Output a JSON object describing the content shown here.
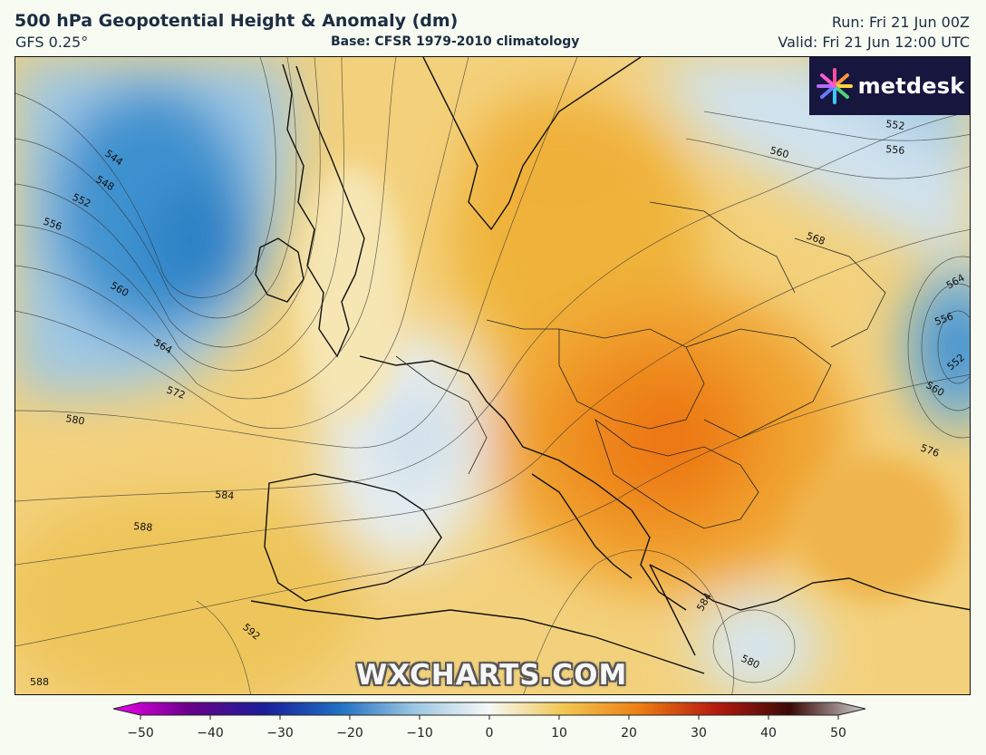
{
  "header": {
    "title": "500 hPa Geopotential Height & Anomaly (dm)",
    "model": "GFS 0.25°",
    "base": "Base: CFSR 1979-2010 climatology",
    "run": "Run: Fri 21 Jun 00Z",
    "valid": "Valid: Fri 21 Jun 12:00 UTC"
  },
  "logo": {
    "text": "metdesk",
    "icon": "metdesk-burst-icon"
  },
  "watermark": "WXCHARTS.COM",
  "colorbar": {
    "ticks": [
      "−50",
      "−40",
      "−30",
      "−20",
      "−10",
      "0",
      "10",
      "20",
      "30",
      "40",
      "50"
    ],
    "colors": {
      "neg50": "#ee00ee",
      "neg40": "#6a008a",
      "neg30": "#1b1d9a",
      "neg20": "#1f6fc2",
      "neg10": "#9cc6e3",
      "zero": "#f7f9f6",
      "pos10": "#f2c650",
      "pos20": "#ee7e12",
      "pos30": "#b81a10",
      "pos40": "#3a0a06",
      "pos50": "#cfcfcf"
    }
  },
  "contours": {
    "labels": [
      "544",
      "548",
      "552",
      "556",
      "560",
      "564",
      "572",
      "580",
      "584",
      "588",
      "592",
      "568",
      "576",
      "552",
      "556",
      "560",
      "564",
      "556",
      "552",
      "560",
      "580",
      "584",
      "588"
    ]
  }
}
